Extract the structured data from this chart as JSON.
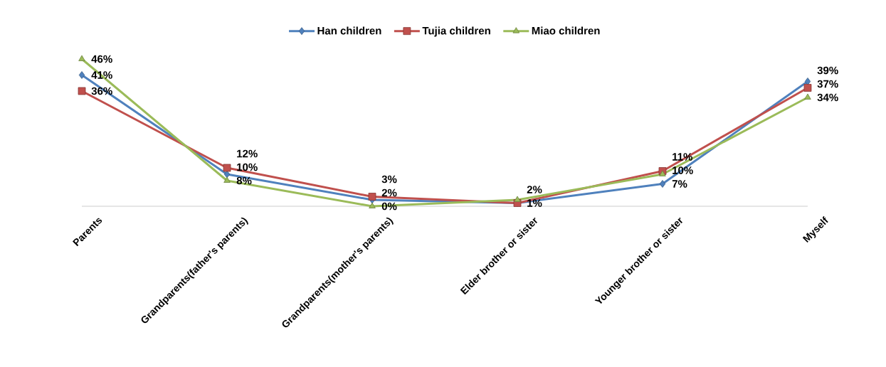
{
  "chart_data": {
    "type": "line",
    "categories": [
      "Parents",
      "Grandparents(father's parents)",
      "Grandparents(mother's parents)",
      "Elder brother or sister",
      "Younger brother or sister",
      "Myself"
    ],
    "series": [
      {
        "name": "Han children",
        "color": "#4f81bd",
        "marker": "diamond",
        "values": [
          41,
          10,
          2,
          1,
          7,
          39
        ],
        "value_labels": [
          "41%",
          "10%",
          "2%",
          null,
          "7%",
          "39%"
        ]
      },
      {
        "name": "Tujia children",
        "color": "#c0504d",
        "marker": "square",
        "values": [
          36,
          12,
          3,
          1,
          11,
          37
        ],
        "value_labels": [
          "36%",
          "12%",
          "3%",
          "1%",
          "11%",
          "37%"
        ]
      },
      {
        "name": "Miao children",
        "color": "#9bbb59",
        "marker": "triangle",
        "values": [
          46,
          8,
          0,
          2,
          10,
          34
        ],
        "value_labels": [
          "46%",
          "8%",
          "0%",
          "2%",
          "10%",
          "34%"
        ]
      }
    ],
    "tick_labels": "x",
    "legend": "top",
    "line_style": "solid"
  }
}
